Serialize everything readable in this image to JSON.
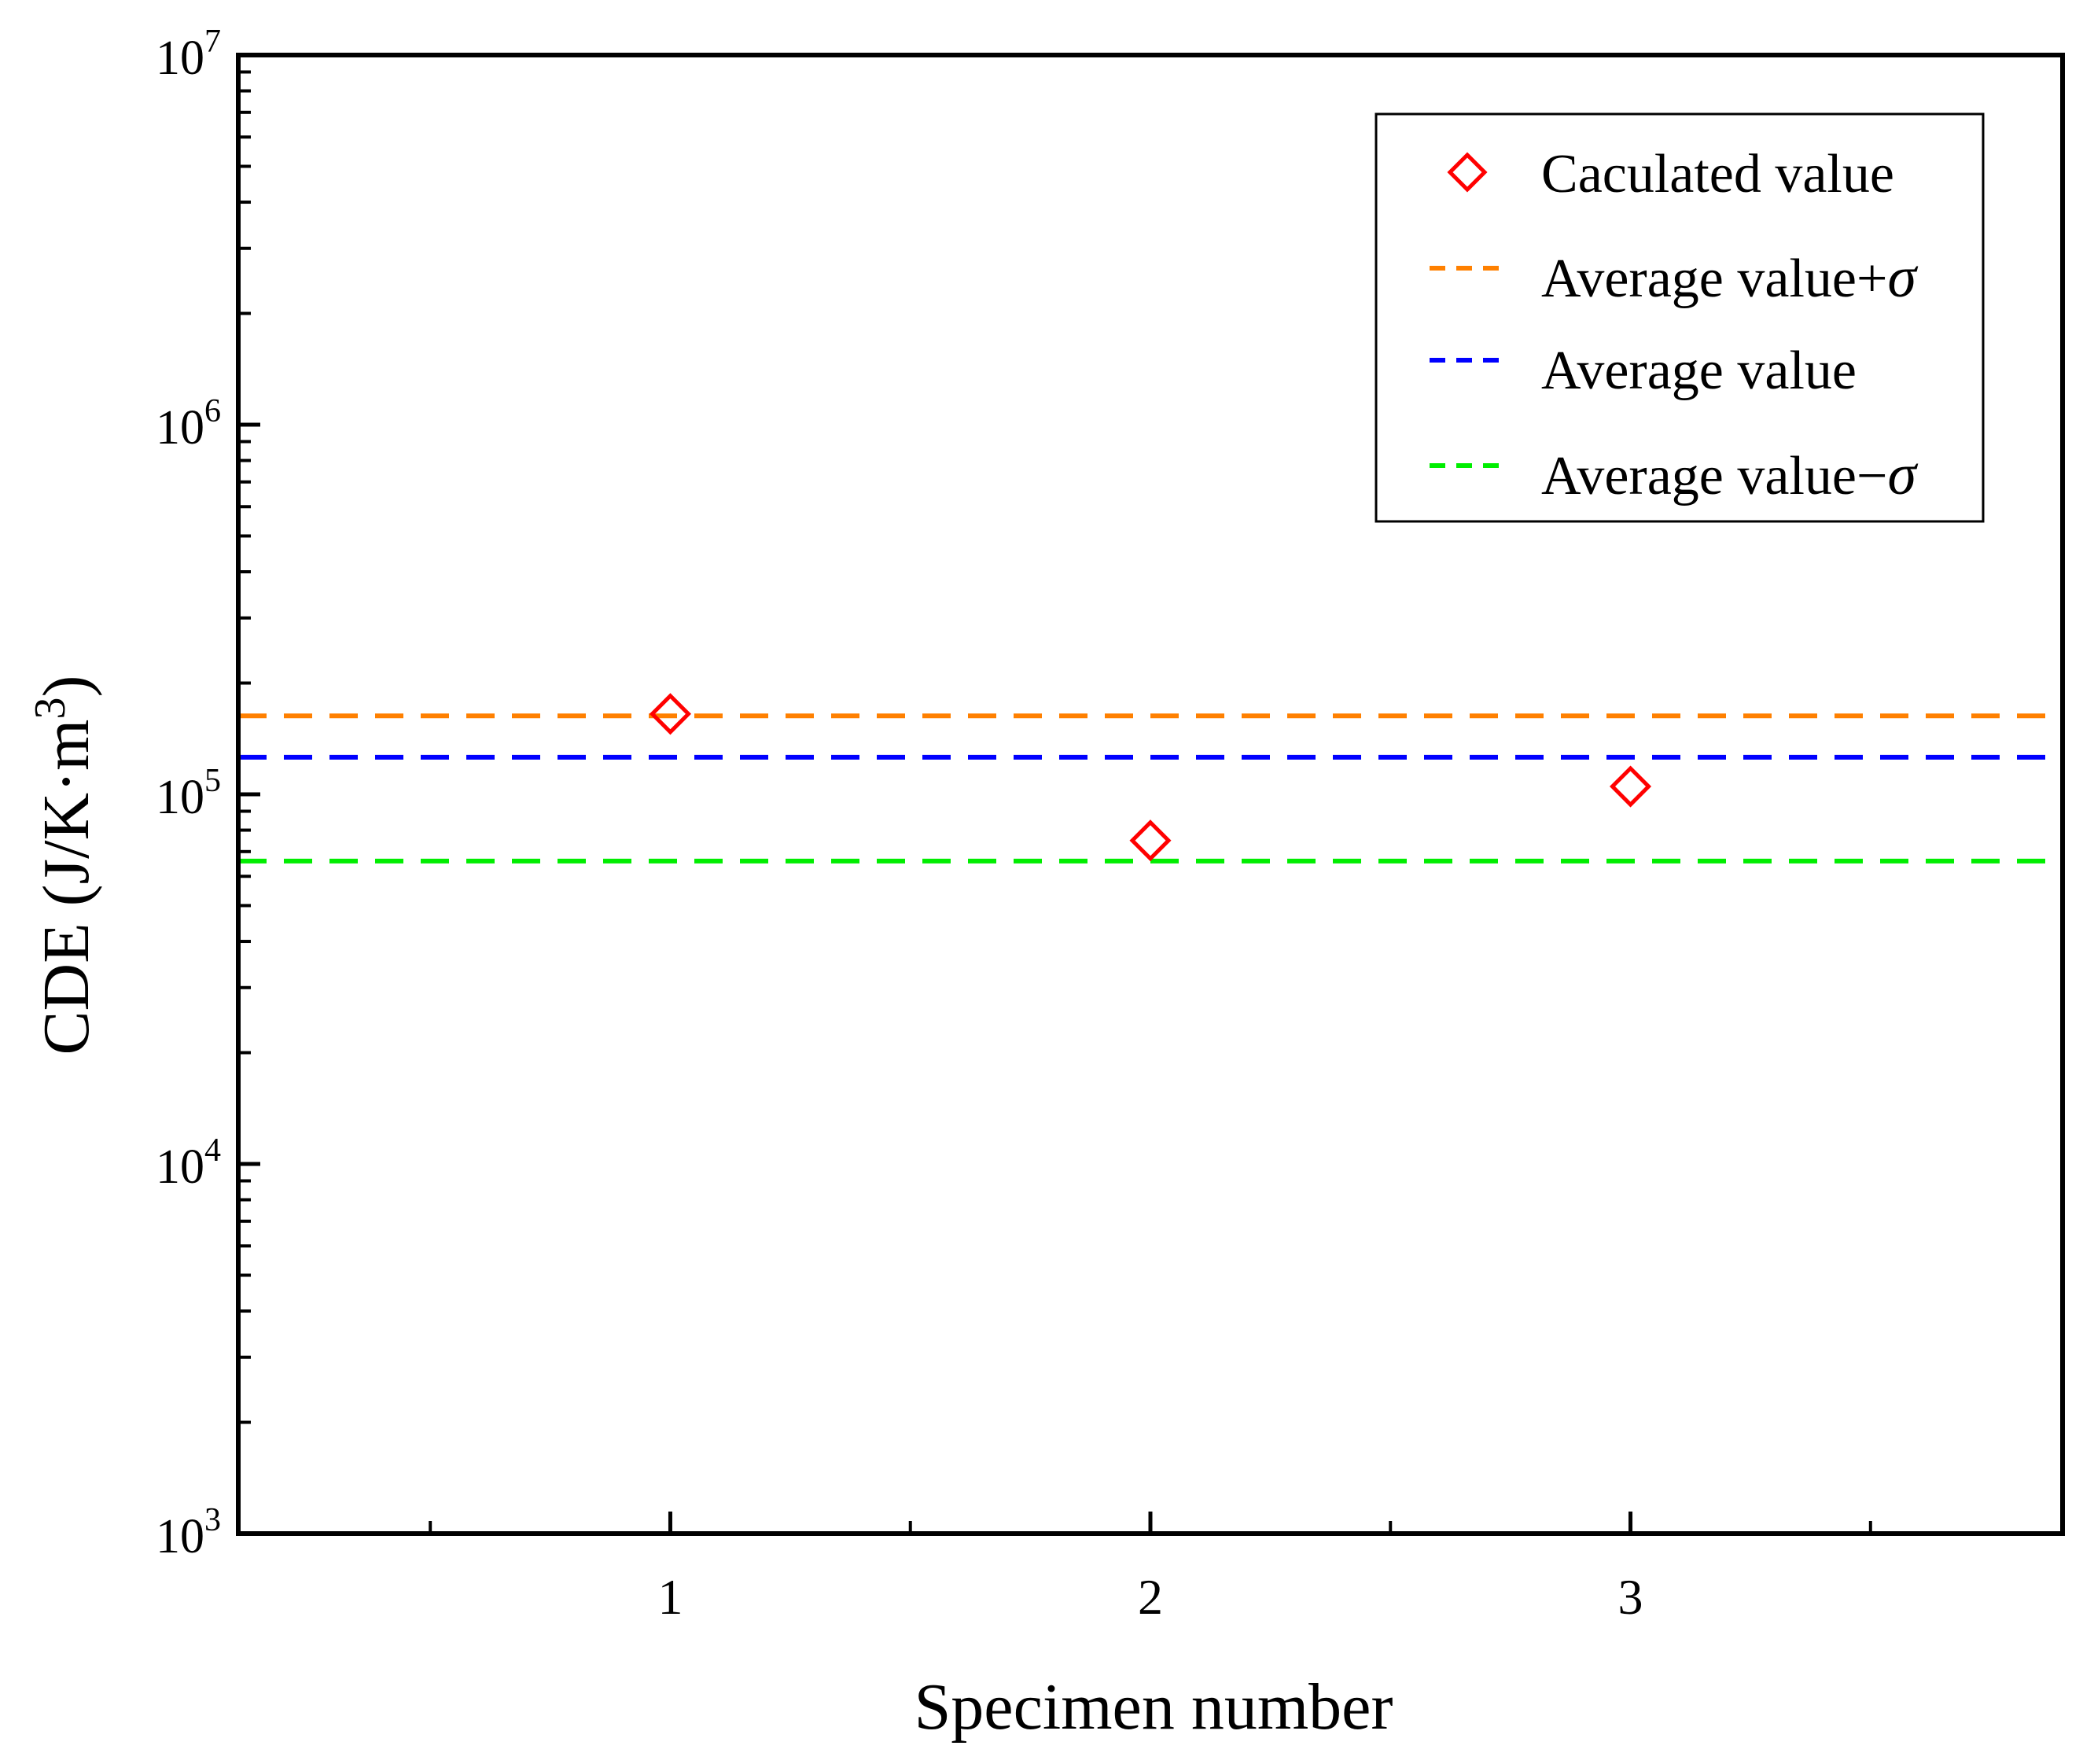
{
  "chart_data": {
    "type": "scatter",
    "title": "",
    "xlabel": "Specimen number",
    "ylabel_main": "CDE (J/K·m",
    "ylabel_sup": "3",
    "ylabel_close": ")",
    "yscale": "log",
    "ylim": [
      1000,
      10000000
    ],
    "xlim": [
      0.1,
      3.9
    ],
    "x_ticks": [
      {
        "value": 1,
        "label": "1"
      },
      {
        "value": 2,
        "label": "2"
      },
      {
        "value": 3,
        "label": "3"
      }
    ],
    "y_ticks": [
      {
        "value": 1000,
        "base": "10",
        "exp": "3"
      },
      {
        "value": 10000,
        "base": "10",
        "exp": "4"
      },
      {
        "value": 100000,
        "base": "10",
        "exp": "5"
      },
      {
        "value": 1000000,
        "base": "10",
        "exp": "6"
      },
      {
        "value": 10000000,
        "base": "10",
        "exp": "7"
      }
    ],
    "series": [
      {
        "name": "Caculated value",
        "kind": "marker",
        "marker": "diamond",
        "color": "#ff0000",
        "x": [
          1,
          2,
          3
        ],
        "y": [
          165000,
          75000,
          105000
        ]
      }
    ],
    "reference_lines": [
      {
        "name": "Average value+",
        "symbol": "σ",
        "color": "#ff8000",
        "y": 163000
      },
      {
        "name": "Average value",
        "symbol": "",
        "color": "#0000ff",
        "y": 126000
      },
      {
        "name": "Average value−",
        "symbol": "σ",
        "color": "#00ee00",
        "y": 66000
      }
    ],
    "legend_position": "top-right",
    "grid": false
  }
}
